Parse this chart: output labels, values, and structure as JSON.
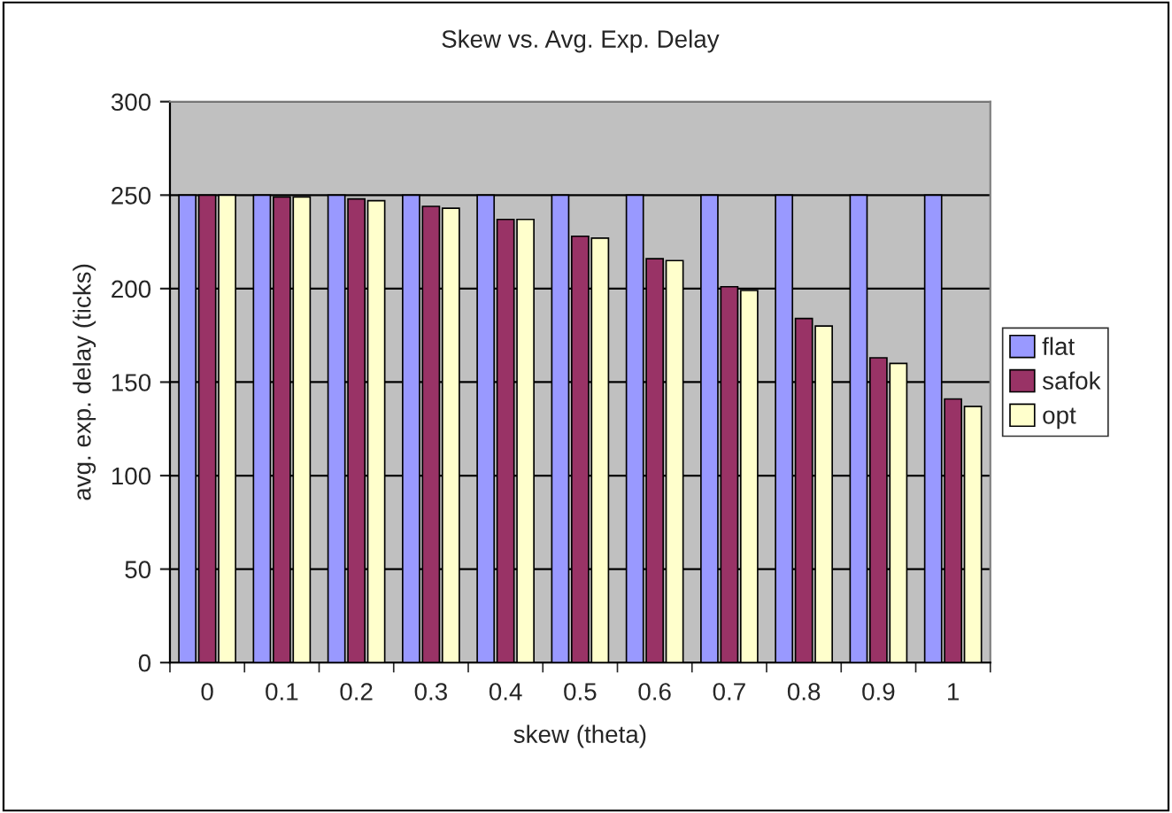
{
  "chart_data": {
    "type": "bar",
    "title": "Skew vs. Avg. Exp. Delay",
    "xlabel": "skew (theta)",
    "ylabel": "avg. exp. delay (ticks)",
    "categories": [
      "0",
      "0.1",
      "0.2",
      "0.3",
      "0.4",
      "0.5",
      "0.6",
      "0.7",
      "0.8",
      "0.9",
      "1"
    ],
    "series": [
      {
        "name": "flat",
        "color": "#9999ff",
        "values": [
          250,
          250,
          250,
          250,
          250,
          250,
          250,
          250,
          250,
          250,
          250
        ]
      },
      {
        "name": "safok",
        "color": "#993366",
        "values": [
          250,
          249,
          248,
          244,
          237,
          228,
          216,
          201,
          184,
          163,
          141
        ]
      },
      {
        "name": "opt",
        "color": "#ffffcc",
        "values": [
          250,
          249,
          247,
          243,
          237,
          227,
          215,
          199,
          180,
          160,
          137
        ]
      }
    ],
    "ylim": [
      0,
      300
    ],
    "yticks": [
      0,
      50,
      100,
      150,
      200,
      250,
      300
    ],
    "grid": "y",
    "legend": "right"
  }
}
